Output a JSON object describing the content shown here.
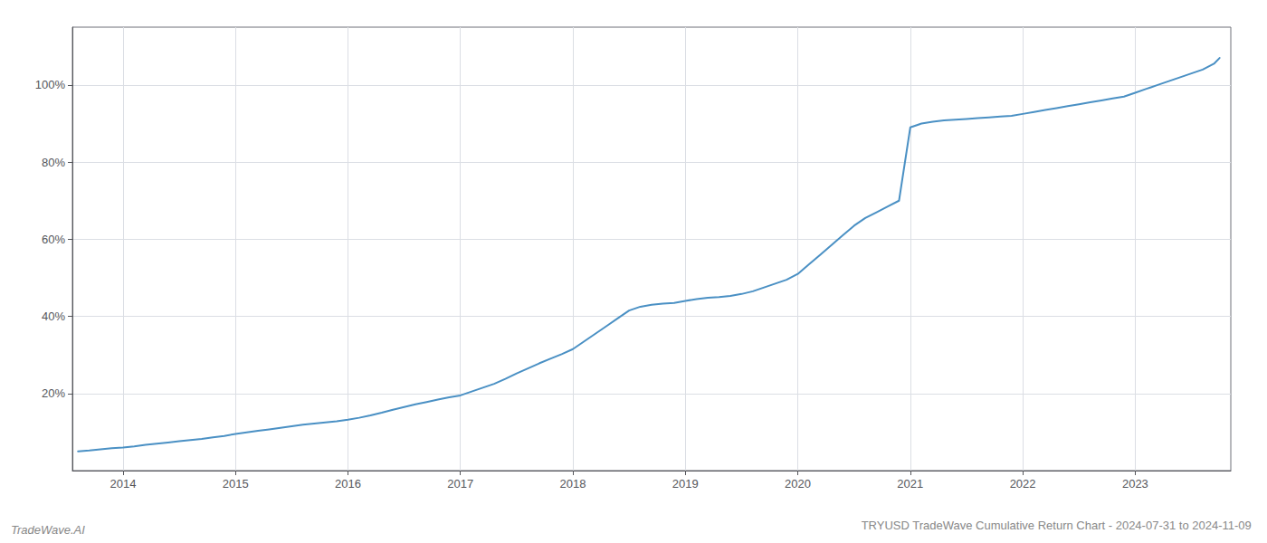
{
  "chart_data": {
    "type": "line",
    "title": "TRYUSD TradeWave Cumulative Return Chart - 2024-07-31 to 2024-11-09",
    "annotations": [
      "TradeWave.AI"
    ],
    "color": "#4a90c4",
    "grid": true,
    "xlim": [
      2013.55,
      2023.85
    ],
    "xticks": [
      2014,
      2015,
      2016,
      2017,
      2018,
      2019,
      2020,
      2021,
      2022,
      2023
    ],
    "ylim": [
      0,
      115
    ],
    "yticks": [
      {
        "value": 20,
        "label": "20%"
      },
      {
        "value": 40,
        "label": "40%"
      },
      {
        "value": 60,
        "label": "60%"
      },
      {
        "value": 80,
        "label": "80%"
      },
      {
        "value": 100,
        "label": "100%"
      }
    ],
    "x": [
      2013.6,
      2013.7,
      2013.8,
      2013.9,
      2014.0,
      2014.1,
      2014.2,
      2014.3,
      2014.4,
      2014.5,
      2014.6,
      2014.7,
      2014.8,
      2014.9,
      2015.0,
      2015.1,
      2015.2,
      2015.3,
      2015.4,
      2015.5,
      2015.6,
      2015.7,
      2015.8,
      2015.9,
      2016.0,
      2016.1,
      2016.2,
      2016.3,
      2016.4,
      2016.5,
      2016.6,
      2016.7,
      2016.8,
      2016.9,
      2017.0,
      2017.1,
      2017.2,
      2017.3,
      2017.4,
      2017.5,
      2017.6,
      2017.7,
      2017.8,
      2017.9,
      2018.0,
      2018.1,
      2018.2,
      2018.3,
      2018.4,
      2018.5,
      2018.6,
      2018.7,
      2018.8,
      2018.9,
      2019.0,
      2019.1,
      2019.2,
      2019.3,
      2019.4,
      2019.5,
      2019.6,
      2019.7,
      2019.8,
      2019.9,
      2020.0,
      2020.1,
      2020.2,
      2020.3,
      2020.4,
      2020.5,
      2020.6,
      2020.7,
      2020.8,
      2020.9,
      2021.0,
      2021.1,
      2021.2,
      2021.3,
      2021.4,
      2021.5,
      2021.6,
      2021.7,
      2021.8,
      2021.9,
      2022.0,
      2022.1,
      2022.2,
      2022.3,
      2022.4,
      2022.5,
      2022.6,
      2022.7,
      2022.8,
      2022.9,
      2023.0,
      2023.1,
      2023.2,
      2023.3,
      2023.4,
      2023.5,
      2023.6,
      2023.7,
      2023.75
    ],
    "values": [
      5.0,
      5.2,
      5.5,
      5.8,
      6.0,
      6.3,
      6.7,
      7.0,
      7.3,
      7.6,
      7.9,
      8.2,
      8.6,
      9.0,
      9.5,
      9.9,
      10.3,
      10.7,
      11.1,
      11.5,
      11.9,
      12.2,
      12.5,
      12.8,
      13.2,
      13.7,
      14.3,
      15.0,
      15.8,
      16.5,
      17.2,
      17.8,
      18.4,
      19.0,
      19.5,
      20.5,
      21.5,
      22.5,
      23.8,
      25.2,
      26.5,
      27.8,
      29.0,
      30.2,
      31.5,
      33.5,
      35.5,
      37.5,
      39.5,
      41.5,
      42.5,
      43.0,
      43.3,
      43.5,
      44.0,
      44.5,
      44.8,
      45.0,
      45.3,
      45.8,
      46.5,
      47.5,
      48.5,
      49.5,
      51.0,
      53.5,
      56.0,
      58.5,
      61.0,
      63.5,
      65.5,
      67.0,
      68.5,
      70.0,
      89.0,
      90.0,
      90.5,
      90.8,
      91.0,
      91.2,
      91.4,
      91.6,
      91.8,
      92.0,
      92.5,
      93.0,
      93.5,
      94.0,
      94.5,
      95.0,
      95.5,
      96.0,
      96.5,
      97.0,
      98.0,
      99.0,
      100.0,
      101.0,
      102.0,
      103.0,
      104.0,
      105.5,
      107.0
    ]
  }
}
